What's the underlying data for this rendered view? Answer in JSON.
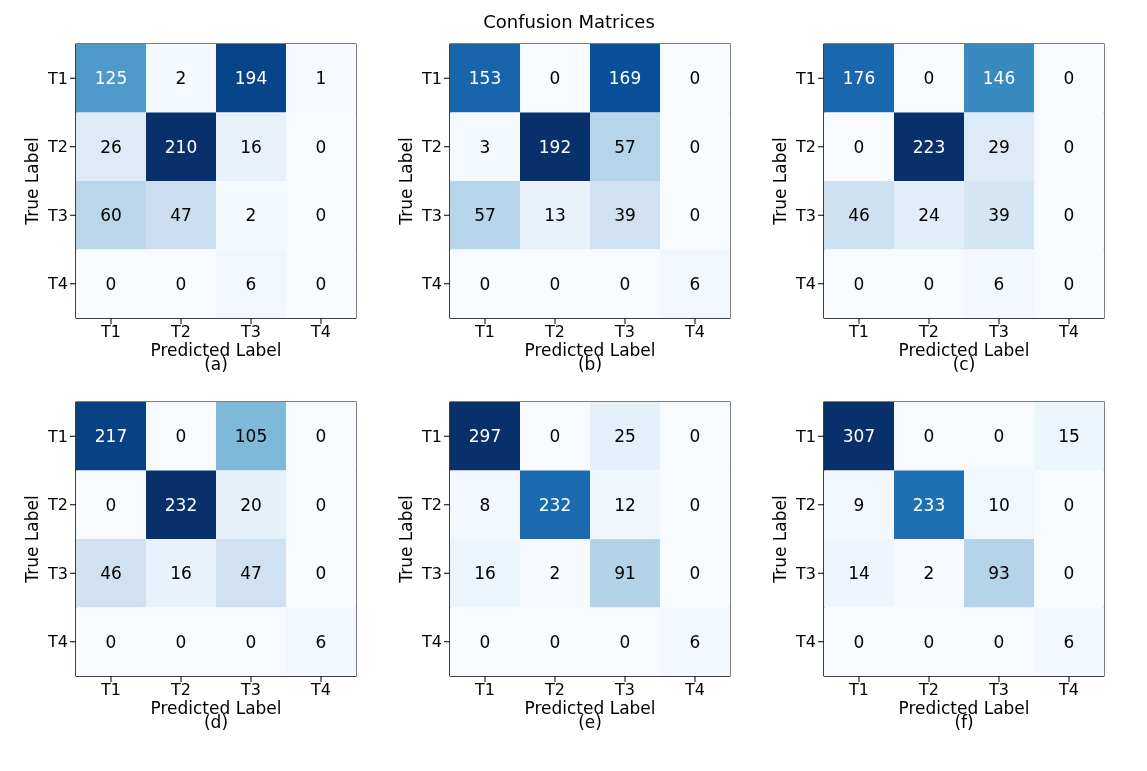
{
  "chart_data": [
    {
      "type": "heatmap",
      "xlabel": "Predicted Label",
      "ylabel": "True Label",
      "annotations": [
        "(a)"
      ],
      "categories": [
        "T1",
        "T2",
        "T3",
        "T4"
      ],
      "y_categories": [
        "T1",
        "T2",
        "T3",
        "T4"
      ],
      "data_labels": true,
      "cells": [
        [
          125,
          2,
          194,
          1
        ],
        [
          26,
          210,
          16,
          0
        ],
        [
          60,
          47,
          2,
          0
        ],
        [
          0,
          0,
          6,
          0
        ]
      ]
    },
    {
      "type": "heatmap",
      "title": "Confusion Matrices",
      "xlabel": "Predicted Label",
      "ylabel": "True Label",
      "annotations": [
        "(b)"
      ],
      "categories": [
        "T1",
        "T2",
        "T3",
        "T4"
      ],
      "y_categories": [
        "T1",
        "T2",
        "T3",
        "T4"
      ],
      "data_labels": true,
      "cells": [
        [
          153,
          0,
          169,
          0
        ],
        [
          3,
          192,
          57,
          0
        ],
        [
          57,
          13,
          39,
          0
        ],
        [
          0,
          0,
          0,
          6
        ]
      ]
    },
    {
      "type": "heatmap",
      "xlabel": "Predicted Label",
      "ylabel": "True Label",
      "annotations": [
        "(c)"
      ],
      "categories": [
        "T1",
        "T2",
        "T3",
        "T4"
      ],
      "y_categories": [
        "T1",
        "T2",
        "T3",
        "T4"
      ],
      "data_labels": true,
      "cells": [
        [
          176,
          0,
          146,
          0
        ],
        [
          0,
          223,
          29,
          0
        ],
        [
          46,
          24,
          39,
          0
        ],
        [
          0,
          0,
          6,
          0
        ]
      ]
    },
    {
      "type": "heatmap",
      "xlabel": "Predicted Label",
      "ylabel": "True Label",
      "annotations": [
        "(d)"
      ],
      "categories": [
        "T1",
        "T2",
        "T3",
        "T4"
      ],
      "y_categories": [
        "T1",
        "T2",
        "T3",
        "T4"
      ],
      "data_labels": true,
      "cells": [
        [
          217,
          0,
          105,
          0
        ],
        [
          0,
          232,
          20,
          0
        ],
        [
          46,
          16,
          47,
          0
        ],
        [
          0,
          0,
          0,
          6
        ]
      ]
    },
    {
      "type": "heatmap",
      "xlabel": "Predicted Label",
      "ylabel": "True Label",
      "annotations": [
        "(e)"
      ],
      "categories": [
        "T1",
        "T2",
        "T3",
        "T4"
      ],
      "y_categories": [
        "T1",
        "T2",
        "T3",
        "T4"
      ],
      "data_labels": true,
      "cells": [
        [
          297,
          0,
          25,
          0
        ],
        [
          8,
          232,
          12,
          0
        ],
        [
          16,
          2,
          91,
          0
        ],
        [
          0,
          0,
          0,
          6
        ]
      ]
    },
    {
      "type": "heatmap",
      "xlabel": "Predicted Label",
      "ylabel": "True Label",
      "annotations": [
        "(f)"
      ],
      "categories": [
        "T1",
        "T2",
        "T3",
        "T4"
      ],
      "y_categories": [
        "T1",
        "T2",
        "T3",
        "T4"
      ],
      "data_labels": true,
      "cells": [
        [
          307,
          0,
          0,
          15
        ],
        [
          9,
          233,
          10,
          0
        ],
        [
          14,
          2,
          93,
          0
        ],
        [
          0,
          0,
          0,
          6
        ]
      ]
    }
  ]
}
